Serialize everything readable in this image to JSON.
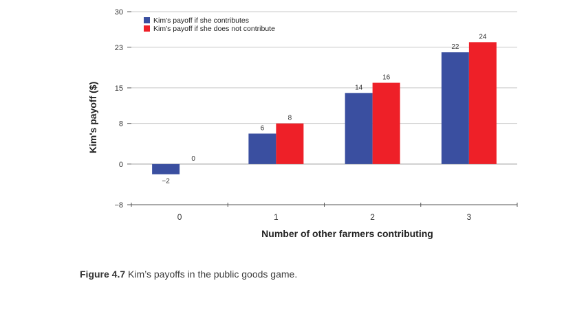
{
  "chart_data": {
    "type": "bar",
    "categories": [
      "0",
      "1",
      "2",
      "3"
    ],
    "series": [
      {
        "name": "Kim's payoff if she contributes",
        "values": [
          -2,
          6,
          14,
          22
        ],
        "color": "#3a4fa0"
      },
      {
        "name": "Kim's payoff if she does not contribute",
        "values": [
          0,
          8,
          16,
          24
        ],
        "color": "#ee2028"
      }
    ],
    "data_labels": [
      [
        "−2",
        "6",
        "14",
        "22"
      ],
      [
        "0",
        "8",
        "16",
        "24"
      ]
    ],
    "xlabel": "Number of other farmers contributing",
    "ylabel": "Kim's payoff ($)",
    "ylim": [
      -8,
      30
    ],
    "yticks": [
      {
        "value": -8,
        "label": "−8"
      },
      {
        "value": 0,
        "label": "0"
      },
      {
        "value": 8,
        "label": "8"
      },
      {
        "value": 15,
        "label": "15"
      },
      {
        "value": 23,
        "label": "23"
      },
      {
        "value": 30,
        "label": "30"
      }
    ],
    "grid": true,
    "legend_position": "top-left"
  },
  "caption": {
    "label": "Figure 4.7",
    "text": " Kim’s payoffs in the public goods game."
  }
}
